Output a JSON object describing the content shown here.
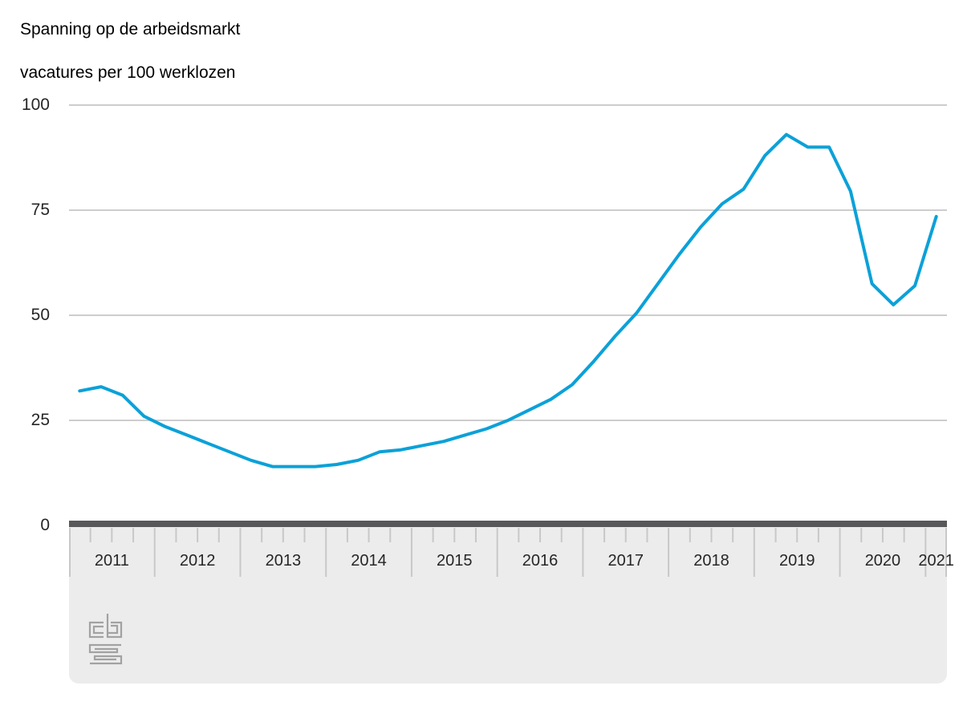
{
  "chart": {
    "title": "Spanning op de arbeidsmarkt",
    "subtitle": "vacatures per 100 werklozen"
  },
  "chart_data": {
    "type": "line",
    "title": "Spanning op de arbeidsmarkt",
    "subtitle": "vacatures per 100 werklozen",
    "ylabel": "vacatures per 100 werklozen",
    "xlabel": "",
    "frequency": "quarterly",
    "x_start": "2011 Q1",
    "x_end": "2021 Q1",
    "x_years": [
      "2011",
      "2012",
      "2013",
      "2014",
      "2015",
      "2016",
      "2017",
      "2018",
      "2019",
      "2020",
      "2021"
    ],
    "values": [
      32,
      33,
      31,
      26,
      23.5,
      21.5,
      19.5,
      17.5,
      15.5,
      14,
      14,
      14,
      14.5,
      15.5,
      17.5,
      18,
      19,
      20,
      21.5,
      23,
      25,
      27.5,
      30,
      33.5,
      39,
      45,
      50.5,
      57.5,
      64.5,
      71,
      76.5,
      80,
      88,
      93,
      90,
      90,
      79.5,
      57.5,
      52.5,
      57,
      73.5
    ],
    "y_ticks": [
      0,
      25,
      50,
      75,
      100
    ],
    "ylim": [
      0,
      100
    ],
    "grid": true,
    "legend": false,
    "line_color": "#0ba1d8",
    "gridline_color": "#cdcdcd",
    "axis_bar_color": "#58585a",
    "panel_color": "#ececec",
    "tick_color": "#c8c8c8",
    "label_color": "#262626",
    "logo": "cbs-logo"
  }
}
